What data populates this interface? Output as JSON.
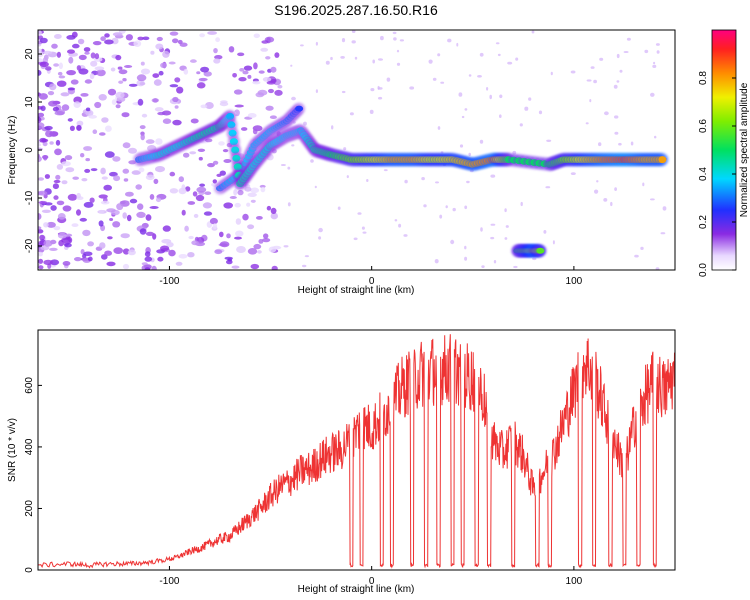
{
  "title": "S196.2025.287.16.50.R16",
  "chart_data": [
    {
      "type": "heatmap",
      "name": "spectrogram",
      "xlabel": "Height of straight line (km)",
      "ylabel": "Frequency (Hz)",
      "xlim": [
        -165,
        150
      ],
      "ylim": [
        -25,
        25
      ],
      "xticks": [
        -100,
        0,
        100
      ],
      "xtick_labels": [
        "-100",
        "0",
        "100"
      ],
      "yticks": [
        -20,
        -10,
        0,
        10,
        20
      ],
      "ytick_labels": [
        "-20",
        "-10",
        "0",
        "10",
        "20"
      ],
      "colorbar": {
        "label": "Normalized spectral amplitude",
        "range": [
          0.0,
          1.0
        ],
        "ticks": [
          0.0,
          0.2,
          0.4,
          0.6,
          0.8
        ],
        "tick_labels": [
          "0.0",
          "0.2",
          "0.4",
          "0.6",
          "0.8"
        ]
      },
      "ridge": {
        "x": [
          -115,
          -105,
          -95,
          -85,
          -75,
          -70,
          -65,
          -58,
          -50,
          -42,
          -35,
          -28,
          -20,
          -10,
          0,
          10,
          20,
          30,
          40,
          50,
          60,
          68,
          88,
          95,
          105,
          115,
          125,
          135,
          145
        ],
        "y": [
          -2,
          -1,
          1,
          3,
          5,
          7,
          -7,
          -3,
          1,
          3,
          4,
          0,
          -1,
          -2,
          -2,
          -2,
          -2,
          -2,
          -2,
          -3,
          -2,
          -2,
          -3,
          -2,
          -2,
          -2,
          -2,
          -2,
          -2
        ],
        "amplitude": [
          0.3,
          0.4,
          0.4,
          0.45,
          0.45,
          0.35,
          0.45,
          0.4,
          0.4,
          0.35,
          0.35,
          0.45,
          0.5,
          0.6,
          0.7,
          0.8,
          0.8,
          0.7,
          0.75,
          0.8,
          0.85,
          0.5,
          0.5,
          0.6,
          0.75,
          0.85,
          0.9,
          0.8,
          0.8
        ]
      },
      "secondary_ridge": {
        "x": [
          -75,
          -65,
          -58,
          -50,
          -42,
          -35
        ],
        "y": [
          -8,
          -5,
          1,
          4,
          6,
          9
        ],
        "amplitude": [
          0.3,
          0.4,
          0.35,
          0.35,
          0.3,
          0.25
        ]
      },
      "blip": {
        "x": [
          72,
          76,
          80,
          84
        ],
        "y": [
          -21,
          -21,
          -21,
          -21
        ],
        "amplitude": [
          0.5,
          0.65,
          0.8,
          0.55
        ]
      }
    },
    {
      "type": "line",
      "name": "snr",
      "xlabel": "Height of straight line (km)",
      "ylabel": "SNR (10 * v/v)",
      "xlim": [
        -165,
        150
      ],
      "ylim": [
        0,
        780
      ],
      "xticks": [
        -100,
        0,
        100
      ],
      "xtick_labels": [
        "-100",
        "0",
        "100"
      ],
      "yticks": [
        0,
        200,
        400,
        600
      ],
      "ytick_labels": [
        "0",
        "200",
        "400",
        "600"
      ],
      "color": "#ee3333",
      "series": [
        {
          "name": "SNR",
          "x": [
            -165,
            -150,
            -140,
            -130,
            -120,
            -110,
            -100,
            -95,
            -90,
            -85,
            -80,
            -75,
            -70,
            -65,
            -60,
            -55,
            -50,
            -45,
            -40,
            -35,
            -30,
            -25,
            -20,
            -15,
            -10,
            -5,
            0,
            5,
            10,
            15,
            20,
            25,
            30,
            35,
            40,
            45,
            50,
            55,
            60,
            65,
            70,
            75,
            80,
            85,
            90,
            95,
            100,
            105,
            110,
            115,
            120,
            125,
            130,
            135,
            140,
            145,
            150
          ],
          "values": [
            15,
            20,
            15,
            20,
            20,
            25,
            35,
            45,
            60,
            70,
            85,
            100,
            110,
            140,
            170,
            200,
            240,
            270,
            290,
            320,
            330,
            360,
            380,
            390,
            430,
            470,
            460,
            500,
            540,
            590,
            620,
            640,
            650,
            650,
            660,
            640,
            620,
            570,
            420,
            380,
            430,
            370,
            260,
            320,
            380,
            480,
            580,
            680,
            640,
            520,
            420,
            330,
            480,
            560,
            620,
            580,
            640
          ]
        }
      ],
      "dropouts_x": [
        -10,
        -5,
        5,
        10,
        20,
        27,
        33,
        40,
        45,
        52,
        58,
        70,
        82,
        88,
        103,
        110,
        118,
        125,
        132,
        140
      ]
    }
  ]
}
